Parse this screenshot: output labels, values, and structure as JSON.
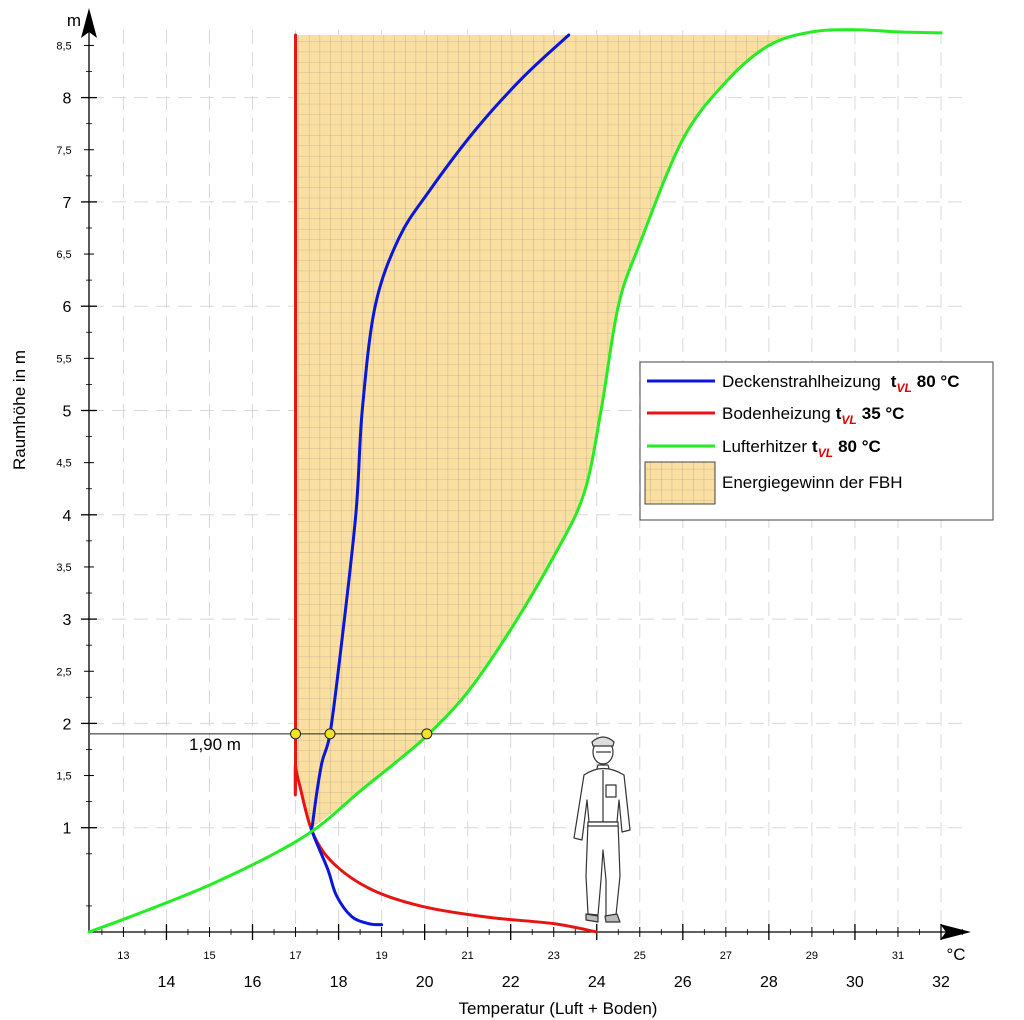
{
  "chart_data": {
    "type": "line",
    "xlabel": "Temperatur (Luft + Boden)",
    "ylabel": "Raumhöhe in m",
    "x_unit": "°C",
    "y_unit": "m",
    "xlim": [
      12.2,
      32.6
    ],
    "ylim": [
      0,
      8.7
    ],
    "x_major_ticks": [
      14,
      16,
      18,
      20,
      22,
      24,
      26,
      28,
      30,
      32
    ],
    "x_minor_ticks": [
      13,
      15,
      17,
      19,
      21,
      23,
      25,
      27,
      29,
      31
    ],
    "y_major_ticks": [
      1,
      2,
      3,
      4,
      5,
      6,
      7,
      8
    ],
    "y_minor_ticks": [
      {
        "v": 1.5,
        "label": "1,5"
      },
      {
        "v": 2.5,
        "label": "2,5"
      },
      {
        "v": 3.5,
        "label": "3,5"
      },
      {
        "v": 4.5,
        "label": "4,5"
      },
      {
        "v": 5.5,
        "label": "5,5"
      },
      {
        "v": 6.5,
        "label": "6,5"
      },
      {
        "v": 7.5,
        "label": "7,5"
      },
      {
        "v": 8.5,
        "label": "8,5"
      }
    ],
    "grid": true,
    "legend_position": "right",
    "series": [
      {
        "name_main": "Deckenstrahlheizung",
        "name_sub": "VL",
        "name_value": "80 °C",
        "color": "#0a16d8",
        "x": [
          19.0,
          18.7,
          18.3,
          17.95,
          17.75,
          17.4,
          17.4,
          17.6,
          17.8,
          18.05,
          18.4,
          18.55,
          18.85,
          19.4,
          20.1,
          21.2,
          22.3,
          23.35
        ],
        "y": [
          0.07,
          0.08,
          0.15,
          0.35,
          0.6,
          0.95,
          1.05,
          1.6,
          1.9,
          2.7,
          4.0,
          5.0,
          6.0,
          6.65,
          7.1,
          7.7,
          8.2,
          8.6
        ]
      },
      {
        "name_main": "Bodenheizung",
        "name_sub": "VL",
        "name_value": "35 °C",
        "color": "#e81414",
        "x": [
          24.0,
          23.0,
          21.5,
          20.0,
          18.8,
          17.9,
          17.4,
          17.1,
          17.0,
          17.0,
          17.0
        ],
        "y": [
          0.0,
          0.08,
          0.14,
          0.24,
          0.4,
          0.65,
          0.95,
          1.4,
          1.6,
          1.9,
          8.6
        ]
      },
      {
        "name_main": "Lufterhitzer",
        "name_sub": "VL",
        "name_value": "80 °C",
        "color": "#22ee22",
        "x": [
          12.2,
          13.5,
          15.0,
          16.5,
          17.5,
          18.5,
          19.4,
          20.1,
          21.0,
          22.0,
          23.0,
          23.7,
          24.1,
          24.5,
          25.0,
          26.0,
          27.0,
          28.0,
          29.0,
          30.0,
          31.0,
          32.0
        ],
        "y": [
          0.0,
          0.2,
          0.45,
          0.75,
          1.0,
          1.35,
          1.65,
          1.9,
          2.3,
          2.9,
          3.6,
          4.2,
          5.0,
          6.0,
          6.6,
          7.6,
          8.15,
          8.5,
          8.63,
          8.65,
          8.63,
          8.62
        ]
      }
    ],
    "shaded_area": {
      "name": "Energiegewinn der FBH",
      "fill": "#fbdfa0"
    },
    "annotations": {
      "reference_height": 1.9,
      "reference_label": "1,90 m",
      "markers": [
        {
          "x": 17.0,
          "y": 1.9
        },
        {
          "x": 17.8,
          "y": 1.9
        },
        {
          "x": 20.05,
          "y": 1.9
        }
      ],
      "marker_color": "#f2e41f"
    },
    "legend": {
      "prefix": "t"
    }
  }
}
